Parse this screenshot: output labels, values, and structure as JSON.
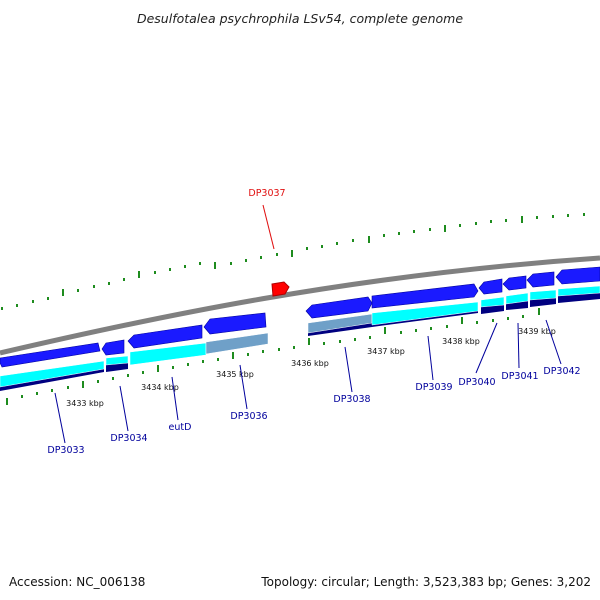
{
  "title": "Desulfotalea psychrophila LSv54, complete genome",
  "footer": {
    "accession": "Accession: NC_006138",
    "summary": "Topology: circular; Length: 3,523,383 bp; Genes: 3,202"
  },
  "colors": {
    "backbone": "#808080",
    "forward_gene": "#1a1aff",
    "forward_cds": "#00ffff",
    "cds_dark": "#000080",
    "highlight": "#ff0000",
    "ticks": "#1e8c1e",
    "gene_label": "#00009c",
    "pseudo": "#6fa0c8"
  },
  "scale_labels": [
    "3433 kbp",
    "3434 kbp",
    "3435 kbp",
    "3436 kbp",
    "3437 kbp",
    "3438 kbp",
    "3439 kbp"
  ],
  "genes": [
    {
      "name": "DP3033"
    },
    {
      "name": "DP3034"
    },
    {
      "name": "eutD"
    },
    {
      "name": "DP3036"
    },
    {
      "name": "DP3037",
      "highlight": true
    },
    {
      "name": "DP3038"
    },
    {
      "name": "DP3039"
    },
    {
      "name": "DP3040"
    },
    {
      "name": "DP3041"
    },
    {
      "name": "DP3042"
    }
  ]
}
